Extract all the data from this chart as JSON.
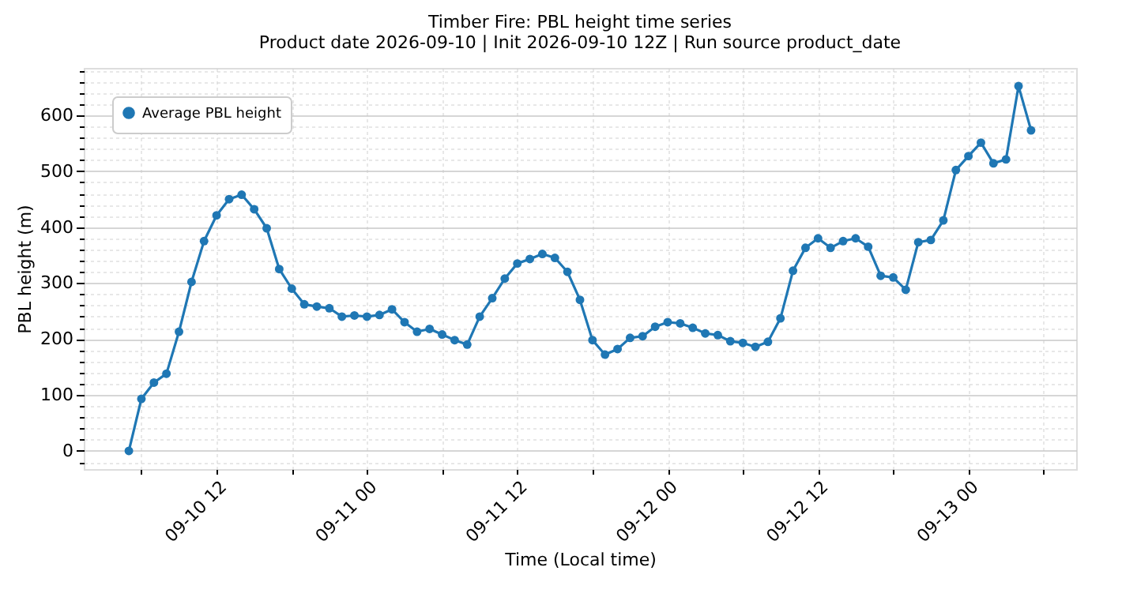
{
  "chart_data": {
    "type": "line",
    "title": "Timber Fire: PBL height time series",
    "subtitle": "Product date 2026-09-10 | Init 2026-09-10 12Z | Run source product_date",
    "xlabel": "Time (Local time)",
    "ylabel": "PBL height (m)",
    "x": [
      "2026-09-10T05:00",
      "2026-09-10T06:00",
      "2026-09-10T07:00",
      "2026-09-10T08:00",
      "2026-09-10T09:00",
      "2026-09-10T10:00",
      "2026-09-10T11:00",
      "2026-09-10T12:00",
      "2026-09-10T13:00",
      "2026-09-10T14:00",
      "2026-09-10T15:00",
      "2026-09-10T16:00",
      "2026-09-10T17:00",
      "2026-09-10T18:00",
      "2026-09-10T19:00",
      "2026-09-10T20:00",
      "2026-09-10T21:00",
      "2026-09-10T22:00",
      "2026-09-10T23:00",
      "2026-09-11T00:00",
      "2026-09-11T01:00",
      "2026-09-11T02:00",
      "2026-09-11T03:00",
      "2026-09-11T04:00",
      "2026-09-11T05:00",
      "2026-09-11T06:00",
      "2026-09-11T07:00",
      "2026-09-11T08:00",
      "2026-09-11T09:00",
      "2026-09-11T10:00",
      "2026-09-11T11:00",
      "2026-09-11T12:00",
      "2026-09-11T13:00",
      "2026-09-11T14:00",
      "2026-09-11T15:00",
      "2026-09-11T16:00",
      "2026-09-11T17:00",
      "2026-09-11T18:00",
      "2026-09-11T19:00",
      "2026-09-11T20:00",
      "2026-09-11T21:00",
      "2026-09-11T22:00",
      "2026-09-11T23:00",
      "2026-09-12T00:00",
      "2026-09-12T01:00",
      "2026-09-12T02:00",
      "2026-09-12T03:00",
      "2026-09-12T04:00",
      "2026-09-12T05:00",
      "2026-09-12T06:00",
      "2026-09-12T07:00",
      "2026-09-12T08:00",
      "2026-09-12T09:00",
      "2026-09-12T10:00",
      "2026-09-12T11:00",
      "2026-09-12T12:00",
      "2026-09-12T13:00",
      "2026-09-12T14:00",
      "2026-09-12T15:00",
      "2026-09-12T16:00",
      "2026-09-12T17:00",
      "2026-09-12T18:00",
      "2026-09-12T19:00",
      "2026-09-12T20:00",
      "2026-09-12T21:00",
      "2026-09-12T22:00",
      "2026-09-12T23:00",
      "2026-09-13T00:00",
      "2026-09-13T01:00",
      "2026-09-13T02:00",
      "2026-09-13T03:00",
      "2026-09-13T04:00",
      "2026-09-13T05:00"
    ],
    "series": [
      {
        "name": "Average PBL height",
        "color": "#1f77b4",
        "values": [
          0,
          93,
          122,
          138,
          213,
          302,
          375,
          421,
          450,
          458,
          432,
          398,
          325,
          290,
          262,
          258,
          255,
          240,
          242,
          240,
          243,
          253,
          230,
          213,
          218,
          208,
          198,
          190,
          240,
          273,
          308,
          335,
          343,
          352,
          345,
          320,
          270,
          198,
          172,
          182,
          202,
          205,
          222,
          230,
          228,
          220,
          210,
          207,
          196,
          193,
          186,
          195,
          237,
          322,
          363,
          380,
          363,
          375,
          380,
          365,
          313,
          310,
          288,
          373,
          377,
          412,
          502,
          527,
          551,
          514,
          521,
          652,
          573
        ]
      }
    ],
    "xlim": [
      "2026-09-10T01:24",
      "2026-09-13T08:36"
    ],
    "xticks": [
      {
        "value": "2026-09-10T06:00",
        "label": null
      },
      {
        "value": "2026-09-10T12:00",
        "label": "09-10 12"
      },
      {
        "value": "2026-09-10T18:00",
        "label": null
      },
      {
        "value": "2026-09-11T00:00",
        "label": "09-11 00"
      },
      {
        "value": "2026-09-11T06:00",
        "label": null
      },
      {
        "value": "2026-09-11T12:00",
        "label": "09-11 12"
      },
      {
        "value": "2026-09-11T18:00",
        "label": null
      },
      {
        "value": "2026-09-12T00:00",
        "label": "09-12 00"
      },
      {
        "value": "2026-09-12T06:00",
        "label": null
      },
      {
        "value": "2026-09-12T12:00",
        "label": "09-12 12"
      },
      {
        "value": "2026-09-12T18:00",
        "label": null
      },
      {
        "value": "2026-09-13T00:00",
        "label": "09-13 00"
      },
      {
        "value": "2026-09-13T06:00",
        "label": null
      }
    ],
    "ylim": [
      -32.6,
      684.6
    ],
    "yticks": [
      {
        "value": -20,
        "label": null
      },
      0,
      {
        "value": 20,
        "label": null
      },
      {
        "value": 40,
        "label": null
      },
      {
        "value": 60,
        "label": null
      },
      {
        "value": 80,
        "label": null
      },
      100,
      {
        "value": 120,
        "label": null
      },
      {
        "value": 140,
        "label": null
      },
      {
        "value": 160,
        "label": null
      },
      {
        "value": 180,
        "label": null
      },
      200,
      {
        "value": 220,
        "label": null
      },
      {
        "value": 240,
        "label": null
      },
      {
        "value": 260,
        "label": null
      },
      {
        "value": 280,
        "label": null
      },
      300,
      {
        "value": 320,
        "label": null
      },
      {
        "value": 340,
        "label": null
      },
      {
        "value": 360,
        "label": null
      },
      {
        "value": 380,
        "label": null
      },
      400,
      {
        "value": 420,
        "label": null
      },
      {
        "value": 440,
        "label": null
      },
      {
        "value": 460,
        "label": null
      },
      {
        "value": 480,
        "label": null
      },
      500,
      {
        "value": 520,
        "label": null
      },
      {
        "value": 540,
        "label": null
      },
      {
        "value": 560,
        "label": null
      },
      {
        "value": 580,
        "label": null
      },
      600,
      {
        "value": 620,
        "label": null
      },
      {
        "value": 640,
        "label": null
      },
      {
        "value": 660,
        "label": null
      },
      {
        "value": 680,
        "label": null
      }
    ],
    "grid": true,
    "legend": "top left",
    "marker": "circle",
    "line_style": "solid"
  }
}
